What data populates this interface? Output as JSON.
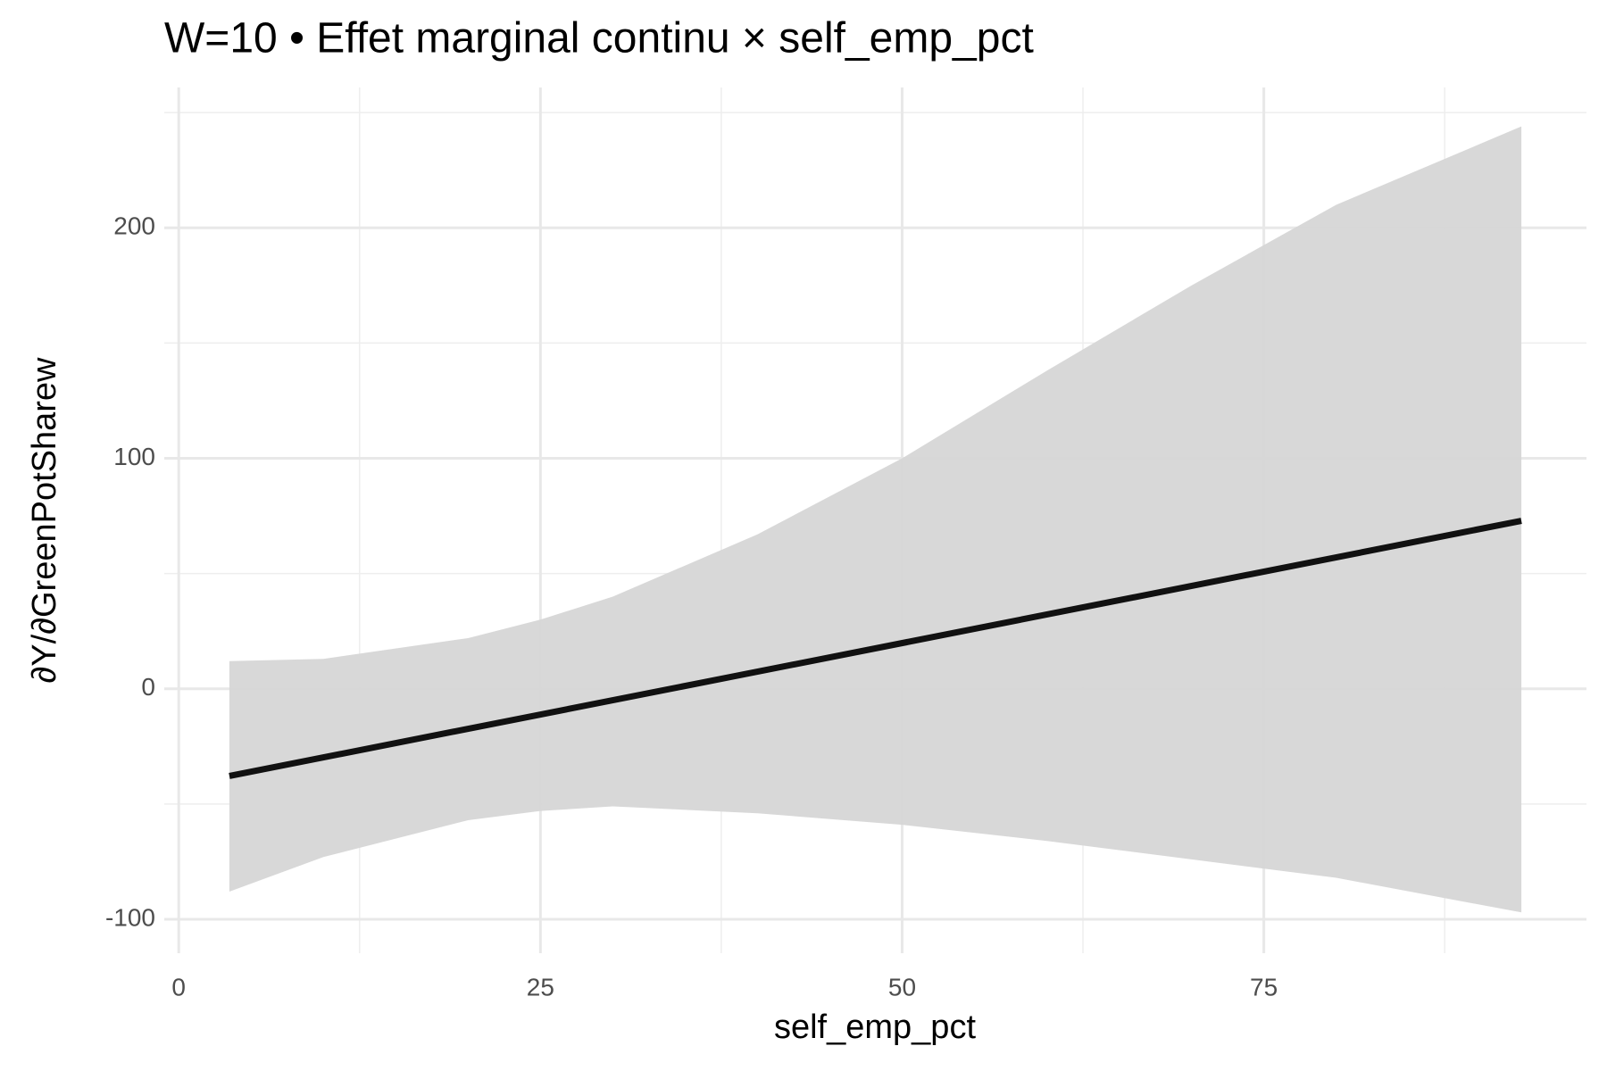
{
  "chart_data": {
    "type": "ribbon-line",
    "title": "W=10 • Effet marginal continu × self_emp_pct",
    "x_label": "self_emp_pct",
    "y_label": "∂Y/∂GreenPotSharew",
    "xlim": [
      -1,
      97.3
    ],
    "ylim": [
      -114.7,
      260.9
    ],
    "xticks": [
      0,
      25,
      50,
      75
    ],
    "yticks": [
      -100,
      0,
      100,
      200
    ],
    "x_minor_ticks": [
      12.5,
      37.5,
      62.5,
      87.5
    ],
    "y_minor_ticks": [
      -50,
      50,
      150,
      250
    ],
    "grid": true,
    "ribbon": {
      "color": "#d6d6d6",
      "x": [
        3.5,
        10,
        20,
        25,
        30,
        40,
        50,
        60,
        70,
        80,
        92.8
      ],
      "upper": [
        12,
        13,
        22,
        30,
        40,
        67,
        100,
        138,
        175,
        210,
        244
      ],
      "lower": [
        -88,
        -73,
        -57,
        -53,
        -51,
        -54,
        -59,
        -66,
        -74,
        -82,
        -97
      ]
    },
    "line": {
      "color": "#111111",
      "x": [
        3.5,
        92.8
      ],
      "y": [
        -37.8,
        72.9
      ]
    }
  }
}
